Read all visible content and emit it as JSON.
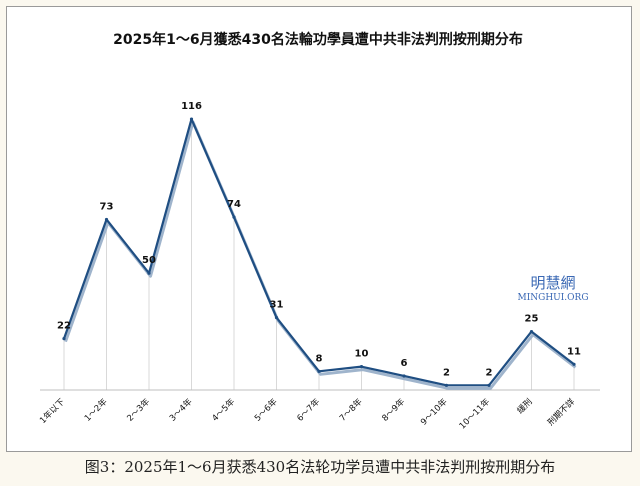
{
  "chart_data": {
    "type": "line",
    "title": "2025年1～6月獲悉430名法輪功學員遭中共非法判刑按刑期分布",
    "xlabel": "",
    "ylabel": "",
    "categories": [
      "1年以下",
      "1～2年",
      "2～3年",
      "3～4年",
      "4～5年",
      "5～6年",
      "6～7年",
      "7～8年",
      "8～9年",
      "9～10年",
      "10～11年",
      "緩刑",
      "刑期不詳"
    ],
    "series": [
      {
        "values": [
          22,
          73,
          50,
          116,
          74,
          31,
          8,
          10,
          6,
          2,
          2,
          25,
          11
        ]
      }
    ],
    "ylim": [
      0,
      120
    ],
    "grid": "vertical drop lines",
    "legend": "none",
    "colors": {
      "line": "#1f4e82",
      "shadow": "#9fb4cc",
      "drop_line": "#d9d9d9"
    }
  },
  "watermark": {
    "cn": "明慧網",
    "en": "MINGHUI.ORG"
  },
  "caption": "图3：2025年1～6月获悉430名法轮功学员遭中共非法判刑按刑期分布"
}
